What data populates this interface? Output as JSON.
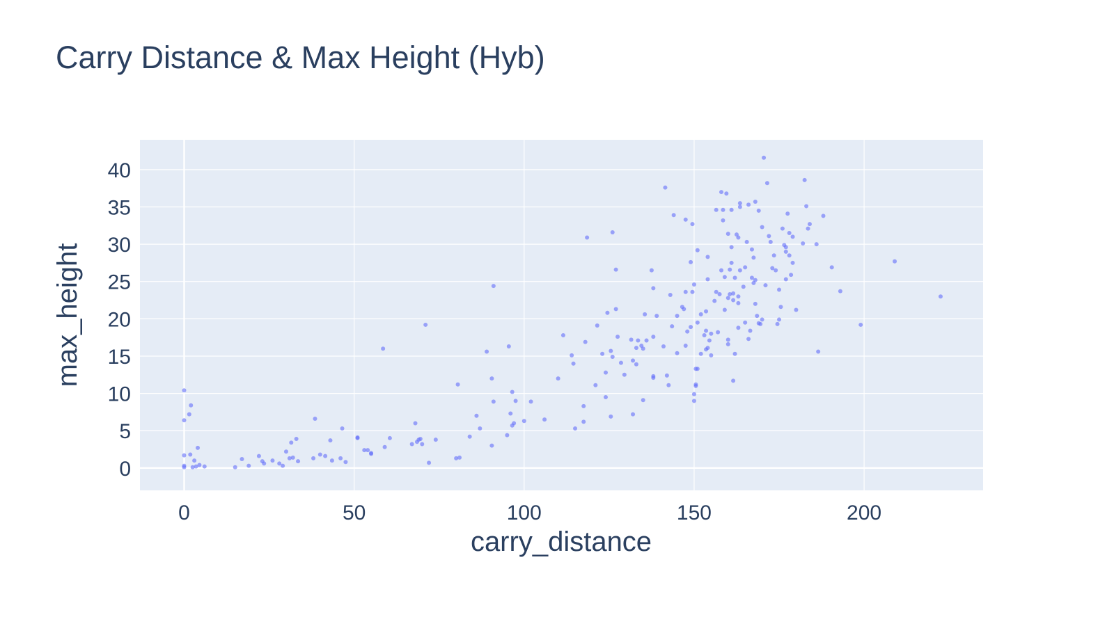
{
  "chart_data": {
    "type": "scatter",
    "title": "Carry Distance & Max Height (Hyb)",
    "xlabel": "carry_distance",
    "ylabel": "max_height",
    "xlim": [
      -13,
      235
    ],
    "ylim": [
      -3,
      44
    ],
    "x_ticks": [
      0,
      50,
      100,
      150,
      200
    ],
    "y_ticks": [
      0,
      5,
      10,
      15,
      20,
      25,
      30,
      35,
      40
    ],
    "grid": true,
    "legend": "none",
    "marker_color": "#636efa",
    "plot_bg": "#e5ecf6",
    "series": [
      {
        "points": [
          [
            0,
            10.4
          ],
          [
            0,
            6.4
          ],
          [
            0,
            1.7
          ],
          [
            0,
            0.3
          ],
          [
            0,
            0.1
          ],
          [
            1.5,
            7.2
          ],
          [
            2,
            8.4
          ],
          [
            1.8,
            1.8
          ],
          [
            2.5,
            0.1
          ],
          [
            3,
            1
          ],
          [
            3.5,
            0.2
          ],
          [
            4,
            2.7
          ],
          [
            4.5,
            0.4
          ],
          [
            6,
            0.2
          ],
          [
            15,
            0.1
          ],
          [
            17,
            1.2
          ],
          [
            19,
            0.3
          ],
          [
            22,
            1.6
          ],
          [
            23,
            0.9
          ],
          [
            23.5,
            0.6
          ],
          [
            26,
            1
          ],
          [
            28,
            0.6
          ],
          [
            29,
            0.3
          ],
          [
            30,
            2.2
          ],
          [
            31,
            1.3
          ],
          [
            31.5,
            3.4
          ],
          [
            32,
            1.4
          ],
          [
            33,
            3.9
          ],
          [
            33.5,
            0.9
          ],
          [
            38,
            1.3
          ],
          [
            38.5,
            6.6
          ],
          [
            40,
            1.8
          ],
          [
            41.5,
            1.6
          ],
          [
            43,
            3.7
          ],
          [
            43.5,
            1
          ],
          [
            46,
            1.3
          ],
          [
            46.5,
            5.3
          ],
          [
            47.5,
            0.8
          ],
          [
            51,
            4.1
          ],
          [
            51,
            4
          ],
          [
            53,
            2.4
          ],
          [
            54,
            2.4
          ],
          [
            55,
            1.9
          ],
          [
            55,
            2
          ],
          [
            59,
            2.8
          ],
          [
            58.5,
            16
          ],
          [
            60.5,
            4
          ],
          [
            67,
            3.2
          ],
          [
            68,
            6
          ],
          [
            68.5,
            3.5
          ],
          [
            69,
            3.8
          ],
          [
            69.5,
            3.9
          ],
          [
            70,
            3.2
          ],
          [
            71,
            19.2
          ],
          [
            72,
            0.7
          ],
          [
            74,
            3.8
          ],
          [
            80,
            1.3
          ],
          [
            80.5,
            11.2
          ],
          [
            81,
            1.4
          ],
          [
            84,
            4.2
          ],
          [
            86,
            7
          ],
          [
            87,
            5.3
          ],
          [
            89,
            15.6
          ],
          [
            90.5,
            3
          ],
          [
            90.5,
            12
          ],
          [
            91,
            8.9
          ],
          [
            91,
            24.4
          ],
          [
            95,
            4.4
          ],
          [
            95.5,
            16.3
          ],
          [
            96,
            7.3
          ],
          [
            96.5,
            10.2
          ],
          [
            96.5,
            5.7
          ],
          [
            97,
            6
          ],
          [
            97.5,
            9
          ],
          [
            100,
            6.3
          ],
          [
            102,
            8.9
          ],
          [
            106,
            6.5
          ],
          [
            110,
            12
          ],
          [
            111.5,
            17.8
          ],
          [
            114,
            15.1
          ],
          [
            114.5,
            14
          ],
          [
            115,
            5.3
          ],
          [
            117.5,
            6.2
          ],
          [
            117.5,
            8.3
          ],
          [
            118,
            16.9
          ],
          [
            118.5,
            30.9
          ],
          [
            121,
            11.1
          ],
          [
            121.5,
            19.1
          ],
          [
            123,
            15.3
          ],
          [
            124,
            9.5
          ],
          [
            124,
            12.8
          ],
          [
            124.5,
            20.8
          ],
          [
            125.5,
            15.7
          ],
          [
            125.5,
            6.9
          ],
          [
            126,
            14.9
          ],
          [
            126,
            31.6
          ],
          [
            127,
            21.3
          ],
          [
            127,
            26.6
          ],
          [
            127.5,
            17.6
          ],
          [
            128.5,
            14.1
          ],
          [
            129.5,
            12.5
          ],
          [
            131.5,
            17.2
          ],
          [
            132,
            14.4
          ],
          [
            132,
            7.2
          ],
          [
            133,
            13.9
          ],
          [
            133,
            16.1
          ],
          [
            133.5,
            17.1
          ],
          [
            134.5,
            16.4
          ],
          [
            135,
            9.1
          ],
          [
            135,
            16
          ],
          [
            135.5,
            20.6
          ],
          [
            136,
            17.1
          ],
          [
            137.5,
            26.5
          ],
          [
            138,
            24.1
          ],
          [
            138,
            17.6
          ],
          [
            138,
            12.3
          ],
          [
            138,
            12.1
          ],
          [
            139,
            20.4
          ],
          [
            141,
            16.3
          ],
          [
            141.5,
            37.6
          ],
          [
            142,
            12.4
          ],
          [
            142.5,
            11.1
          ],
          [
            143,
            23.2
          ],
          [
            143.5,
            19
          ],
          [
            144,
            33.9
          ],
          [
            145,
            15.4
          ],
          [
            145,
            20.4
          ],
          [
            146.5,
            21.6
          ],
          [
            147,
            21.3
          ],
          [
            147.5,
            23.6
          ],
          [
            147.5,
            16.4
          ],
          [
            147.5,
            33.3
          ],
          [
            148,
            18.3
          ],
          [
            149,
            27.6
          ],
          [
            149,
            18.9
          ],
          [
            149.5,
            32.7
          ],
          [
            149.5,
            23.6
          ],
          [
            150,
            24.6
          ],
          [
            150,
            9
          ],
          [
            150,
            9.9
          ],
          [
            150.5,
            11.2
          ],
          [
            150.5,
            11
          ],
          [
            150.5,
            13.3
          ],
          [
            151,
            13.3
          ],
          [
            151,
            19.5
          ],
          [
            151,
            29.2
          ],
          [
            152,
            20.6
          ],
          [
            152,
            15.3
          ],
          [
            153,
            17.8
          ],
          [
            153.5,
            15.9
          ],
          [
            153.5,
            18.4
          ],
          [
            153.5,
            21
          ],
          [
            154,
            16.1
          ],
          [
            154,
            25.3
          ],
          [
            154,
            28.3
          ],
          [
            154.5,
            17.1
          ],
          [
            155,
            15.1
          ],
          [
            155,
            18
          ],
          [
            156,
            22.4
          ],
          [
            156.5,
            23.6
          ],
          [
            156.5,
            34.6
          ],
          [
            157,
            18.2
          ],
          [
            157.5,
            23.3
          ],
          [
            158,
            37
          ],
          [
            158,
            26.5
          ],
          [
            158.5,
            33.2
          ],
          [
            158.5,
            34.6
          ],
          [
            159,
            25.6
          ],
          [
            159,
            21.2
          ],
          [
            159.5,
            36.8
          ],
          [
            160,
            17.2
          ],
          [
            160,
            22.8
          ],
          [
            160,
            31.4
          ],
          [
            160,
            16.6
          ],
          [
            160.5,
            26.6
          ],
          [
            160.5,
            23.3
          ],
          [
            161,
            27.5
          ],
          [
            161,
            34.6
          ],
          [
            161,
            29.6
          ],
          [
            161.5,
            11.7
          ],
          [
            161.5,
            23.4
          ],
          [
            161.5,
            22.5
          ],
          [
            162,
            15.3
          ],
          [
            162,
            25.5
          ],
          [
            162.5,
            31.3
          ],
          [
            163,
            30.9
          ],
          [
            163,
            23
          ],
          [
            163,
            22.1
          ],
          [
            163,
            18.8
          ],
          [
            163.5,
            35.5
          ],
          [
            163.5,
            35
          ],
          [
            163.5,
            26.5
          ],
          [
            164.5,
            24.3
          ],
          [
            165,
            26.9
          ],
          [
            165,
            19.5
          ],
          [
            165.5,
            30.3
          ],
          [
            166,
            35.3
          ],
          [
            166,
            17.3
          ],
          [
            166.5,
            18.4
          ],
          [
            167,
            25.5
          ],
          [
            167,
            29.3
          ],
          [
            167.5,
            24.8
          ],
          [
            167.5,
            28.2
          ],
          [
            168,
            35.7
          ],
          [
            168,
            22
          ],
          [
            168,
            25.2
          ],
          [
            168.5,
            20.4
          ],
          [
            169,
            34.5
          ],
          [
            169,
            19.4
          ],
          [
            169.5,
            19.3
          ],
          [
            170,
            19.9
          ],
          [
            170,
            32.3
          ],
          [
            170.5,
            41.6
          ],
          [
            171,
            24.5
          ],
          [
            171.5,
            38.2
          ],
          [
            172,
            31.1
          ],
          [
            172.5,
            30.3
          ],
          [
            173,
            26.8
          ],
          [
            173.5,
            28.5
          ],
          [
            174,
            26.5
          ],
          [
            174.5,
            19.3
          ],
          [
            175,
            23.9
          ],
          [
            175,
            19.9
          ],
          [
            175.5,
            21.6
          ],
          [
            176,
            32.1
          ],
          [
            176.5,
            29.9
          ],
          [
            177,
            29
          ],
          [
            177,
            29.6
          ],
          [
            177,
            25.3
          ],
          [
            177.5,
            34.1
          ],
          [
            178,
            28.5
          ],
          [
            178,
            31.5
          ],
          [
            178.5,
            25.9
          ],
          [
            179,
            27.5
          ],
          [
            179,
            31
          ],
          [
            180,
            21.2
          ],
          [
            182,
            30.1
          ],
          [
            182.5,
            38.6
          ],
          [
            183,
            35.1
          ],
          [
            183.5,
            32.1
          ],
          [
            184,
            32.7
          ],
          [
            186,
            30
          ],
          [
            186.5,
            15.6
          ],
          [
            188,
            33.8
          ],
          [
            190.5,
            26.9
          ],
          [
            193,
            23.7
          ],
          [
            199,
            19.2
          ],
          [
            209,
            27.7
          ],
          [
            222.5,
            23
          ]
        ]
      }
    ]
  }
}
